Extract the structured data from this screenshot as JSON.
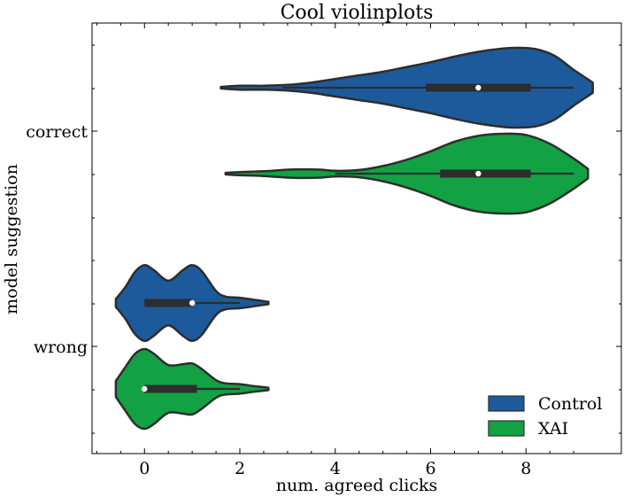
{
  "chart_data": {
    "type": "violin",
    "orientation": "horizontal",
    "title": "Cool violinplots",
    "xlabel": "num. agreed clicks",
    "ylabel": "model suggestion",
    "xlim": [
      -1.1,
      10.0
    ],
    "x_ticks": [
      0,
      2,
      4,
      6,
      8
    ],
    "categories": [
      "correct",
      "wrong"
    ],
    "legend": {
      "position": "lower-right",
      "frame": false
    },
    "series": [
      {
        "name": "Control",
        "color": "#1d5a9b",
        "groups": [
          {
            "category": "correct",
            "range": [
              1.6,
              9.4
            ],
            "whisker": [
              2.9,
              9.0
            ],
            "box": [
              5.9,
              8.1
            ],
            "median": 7.0,
            "density": [
              [
                1.6,
                0.02
              ],
              [
                2.0,
                0.05
              ],
              [
                2.5,
                0.05
              ],
              [
                3.0,
                0.07
              ],
              [
                3.5,
                0.13
              ],
              [
                4.0,
                0.22
              ],
              [
                4.5,
                0.31
              ],
              [
                5.0,
                0.4
              ],
              [
                5.5,
                0.52
              ],
              [
                6.0,
                0.64
              ],
              [
                6.5,
                0.78
              ],
              [
                7.0,
                0.9
              ],
              [
                7.5,
                0.98
              ],
              [
                7.8,
                1.0
              ],
              [
                8.2,
                0.97
              ],
              [
                8.6,
                0.8
              ],
              [
                9.0,
                0.45
              ],
              [
                9.4,
                0.13
              ]
            ]
          },
          {
            "category": "wrong",
            "range": [
              -0.6,
              2.6
            ],
            "whisker": [
              0,
              2.0
            ],
            "box": [
              0,
              1.0
            ],
            "median": 1.0,
            "density": [
              [
                -0.6,
                0.1
              ],
              [
                -0.4,
                0.4
              ],
              [
                -0.2,
                0.78
              ],
              [
                0.0,
                0.95
              ],
              [
                0.2,
                0.82
              ],
              [
                0.5,
                0.56
              ],
              [
                0.8,
                0.82
              ],
              [
                1.0,
                0.95
              ],
              [
                1.2,
                0.8
              ],
              [
                1.5,
                0.3
              ],
              [
                1.7,
                0.16
              ],
              [
                2.0,
                0.13
              ],
              [
                2.3,
                0.08
              ],
              [
                2.6,
                0.03
              ]
            ]
          }
        ]
      },
      {
        "name": "XAI",
        "color": "#12a143",
        "groups": [
          {
            "category": "correct",
            "range": [
              1.7,
              9.3
            ],
            "whisker": [
              4.0,
              9.0
            ],
            "box": [
              6.2,
              8.1
            ],
            "median": 7.0,
            "density": [
              [
                1.7,
                0.02
              ],
              [
                2.0,
                0.04
              ],
              [
                2.5,
                0.06
              ],
              [
                3.0,
                0.1
              ],
              [
                3.3,
                0.11
              ],
              [
                3.7,
                0.1
              ],
              [
                4.0,
                0.07
              ],
              [
                4.5,
                0.09
              ],
              [
                5.0,
                0.19
              ],
              [
                5.5,
                0.35
              ],
              [
                6.0,
                0.56
              ],
              [
                6.5,
                0.8
              ],
              [
                7.0,
                0.95
              ],
              [
                7.5,
                1.0
              ],
              [
                8.0,
                0.97
              ],
              [
                8.5,
                0.75
              ],
              [
                9.0,
                0.38
              ],
              [
                9.3,
                0.12
              ]
            ]
          },
          {
            "category": "wrong",
            "range": [
              -0.6,
              2.6
            ],
            "whisker": [
              0,
              2.0
            ],
            "box": [
              0,
              1.1
            ],
            "median": 0.0,
            "density": [
              [
                -0.6,
                0.2
              ],
              [
                -0.4,
                0.55
              ],
              [
                -0.2,
                0.88
              ],
              [
                0.0,
                1.0
              ],
              [
                0.2,
                0.88
              ],
              [
                0.5,
                0.6
              ],
              [
                0.8,
                0.62
              ],
              [
                1.0,
                0.64
              ],
              [
                1.2,
                0.5
              ],
              [
                1.5,
                0.22
              ],
              [
                1.7,
                0.14
              ],
              [
                2.0,
                0.12
              ],
              [
                2.3,
                0.07
              ],
              [
                2.6,
                0.03
              ]
            ]
          }
        ]
      }
    ]
  }
}
